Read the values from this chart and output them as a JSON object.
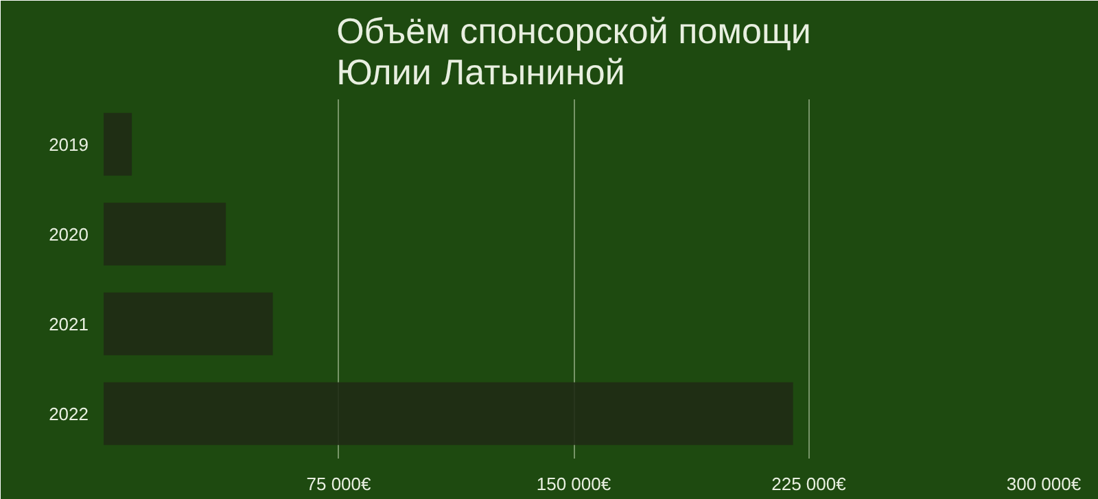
{
  "chart_data": {
    "type": "bar",
    "orientation": "horizontal",
    "title": "Объём спонсорской помощи\nЮлии Латыниной",
    "categories": [
      "2019",
      "2020",
      "2021",
      "2022"
    ],
    "values": [
      9000,
      39000,
      54000,
      220000
    ],
    "color": "#1f2b15",
    "xlim": [
      0,
      300000
    ],
    "xticks": [
      {
        "value": 75000,
        "label": "75 000€"
      },
      {
        "value": 150000,
        "label": "150 000€"
      },
      {
        "value": 225000,
        "label": "225 000€"
      },
      {
        "value": 300000,
        "label": "300 000€"
      }
    ],
    "grid": "x"
  }
}
